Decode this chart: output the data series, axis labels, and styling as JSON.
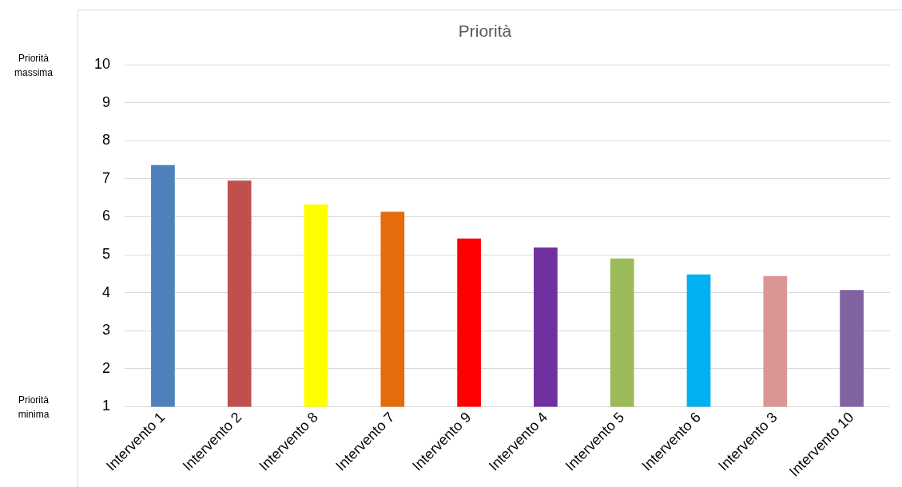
{
  "chart_data": {
    "type": "bar",
    "title": "Priorità",
    "categories": [
      "Intervento 1",
      "Intervento 2",
      "Intervento 8",
      "Intervento 7",
      "Intervento 9",
      "Intervento 4",
      "Intervento 5",
      "Intervento 6",
      "Intervento 3",
      "Intervento 10"
    ],
    "values": [
      7.36,
      6.95,
      6.32,
      6.13,
      5.43,
      5.19,
      4.9,
      4.48,
      4.44,
      4.07
    ],
    "colors": [
      "#4f81bd",
      "#c0504d",
      "#ffff00",
      "#e46c0a",
      "#ff0000",
      "#7030a0",
      "#9bbb59",
      "#00b0f0",
      "#d99694",
      "#8064a2"
    ],
    "ylim": [
      1,
      10
    ],
    "yticks": [
      1,
      2,
      3,
      4,
      5,
      6,
      7,
      8,
      9,
      10
    ],
    "grid": "y",
    "legend": false,
    "annotations": [
      "Priorità massima",
      "Priorità minima"
    ]
  }
}
